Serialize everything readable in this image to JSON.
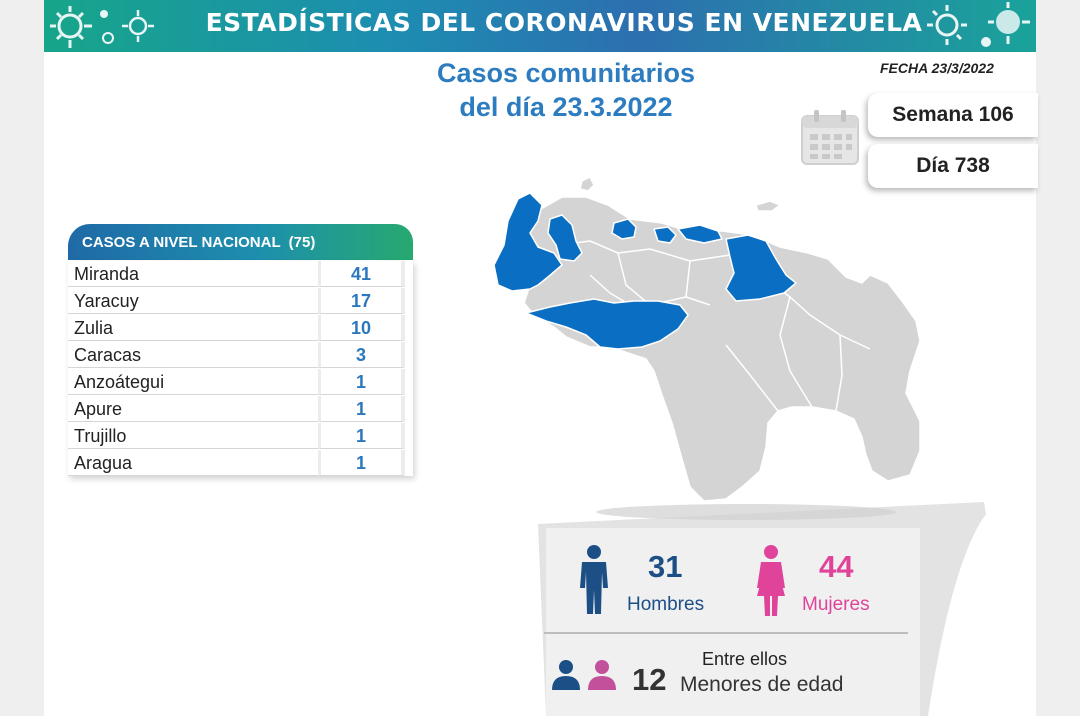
{
  "banner": {
    "title": "ESTADÍSTICAS DEL CORONAVIRUS EN VENEZUELA"
  },
  "header": {
    "title_line1": "Casos comunitarios",
    "title_line2": "del día 23.3.2022",
    "fecha": "FECHA 23/3/2022",
    "semana": "Semana 106",
    "dia": "Día 738"
  },
  "table": {
    "title": "CASOS A NIVEL NACIONAL",
    "total": "(75)",
    "rows": [
      {
        "state": "Miranda",
        "cases": "41"
      },
      {
        "state": "Yaracuy",
        "cases": "17"
      },
      {
        "state": "Zulia",
        "cases": "10"
      },
      {
        "state": "Caracas",
        "cases": "3"
      },
      {
        "state": "Anzoátegui",
        "cases": "1"
      },
      {
        "state": "Apure",
        "cases": "1"
      },
      {
        "state": "Trujillo",
        "cases": "1"
      },
      {
        "state": "Aragua",
        "cases": "1"
      }
    ]
  },
  "stats": {
    "men_count": "31",
    "men_label": "Hombres",
    "women_count": "44",
    "women_label": "Mujeres",
    "minors_intro": "Entre ellos",
    "minors_count": "12",
    "minors_label": "Menores de edad"
  },
  "colors": {
    "accent_blue": "#2c7cbf",
    "map_highlight": "#0a6fc2",
    "map_base": "#d4d4d4",
    "men": "#1c4f86",
    "women": "#e0449a"
  },
  "icons": [
    "virus-icon",
    "calendar-icon",
    "man-icon",
    "woman-icon",
    "child-pair-icon"
  ]
}
